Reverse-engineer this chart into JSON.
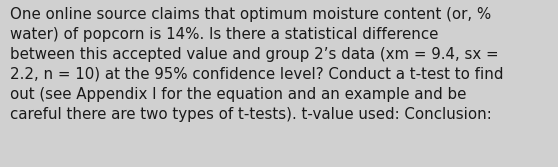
{
  "text": "One online source claims that optimum moisture content (or, %\nwater) of popcorn is 14%. Is there a statistical difference\nbetween this accepted value and group 2’s data (xm = 9.4, sx =\n2.2, n = 10) at the 95% confidence level? Conduct a t-test to find\nout (see Appendix I for the equation and an example and be\ncareful there are two types of t-tests). t-value used: Conclusion:",
  "background_color": "#d0d0d0",
  "text_color": "#1a1a1a",
  "font_size": 10.8,
  "font_family": "DejaVu Sans",
  "fig_width": 5.58,
  "fig_height": 1.67,
  "dpi": 100
}
